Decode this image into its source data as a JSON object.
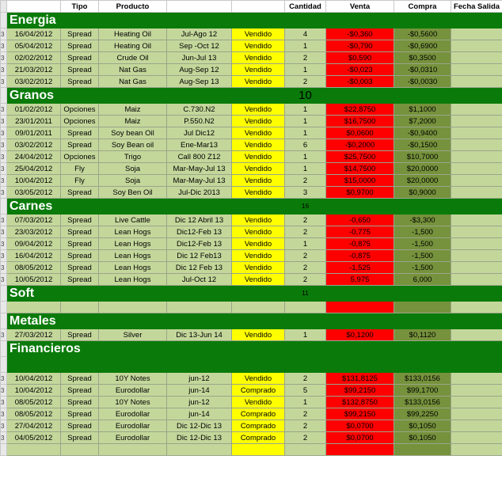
{
  "header": {
    "tipo": "Tipo",
    "producto": "Producto",
    "cantidad": "Cantidad",
    "venta": "Venta",
    "compra": "Compra",
    "fecha_salida": "Fecha Salida"
  },
  "sections": {
    "energia": {
      "title": "Energia",
      "count": "",
      "rows": [
        {
          "rn": "3",
          "fecha": "16/04/2012",
          "tipo": "Spread",
          "producto": "Heating Oil",
          "contrato": "Jul-Ago 12",
          "estado": "Vendido",
          "cantidad": "4",
          "venta": "-$0,360",
          "compra": "-$0,5600"
        },
        {
          "rn": "3",
          "fecha": "05/04/2012",
          "tipo": "Spread",
          "producto": "Heating Oil",
          "contrato": "Sep -Oct 12",
          "estado": "Vendido",
          "cantidad": "1",
          "venta": "-$0,790",
          "compra": "-$0,6900"
        },
        {
          "rn": "3",
          "fecha": "02/02/2012",
          "tipo": "Spread",
          "producto": "Crude Oil",
          "contrato": "Jun-Jul 13",
          "estado": "Vendido",
          "cantidad": "2",
          "venta": "$0,590",
          "compra": "$0,3500"
        },
        {
          "rn": "3",
          "fecha": "21/03/2012",
          "tipo": "Spread",
          "producto": "Nat Gas",
          "contrato": "Aug-Sep 12",
          "estado": "Vendido",
          "cantidad": "1",
          "venta": "-$0,023",
          "compra": "-$0,0310"
        },
        {
          "rn": "3",
          "fecha": "03/02/2012",
          "tipo": "Spread",
          "producto": "Nat Gas",
          "contrato": "Aug-Sep 13",
          "estado": "Vendido",
          "cantidad": "2",
          "venta": "-$0,003",
          "compra": "-$0,0030"
        }
      ]
    },
    "granos": {
      "title": "Granos",
      "count": "10",
      "rows": [
        {
          "rn": "3",
          "fecha": "01/02/2012",
          "tipo": "Opciones",
          "producto": "Maiz",
          "contrato": "C.730.N2",
          "estado": "Vendido",
          "cantidad": "1",
          "venta": "$22,8750",
          "compra": "$1,1000"
        },
        {
          "rn": "3",
          "fecha": "23/01/2011",
          "tipo": "Opciones",
          "producto": "Maiz",
          "contrato": "P.550.N2",
          "estado": "Vendido",
          "cantidad": "1",
          "venta": "$16,7500",
          "compra": "$7,2000"
        },
        {
          "rn": "3",
          "fecha": "09/01/2011",
          "tipo": "Spread",
          "producto": "Soy bean Oil",
          "contrato": "Jul Dic12",
          "estado": "Vendido",
          "cantidad": "1",
          "venta": "$0,0600",
          "compra": "-$0,9400"
        },
        {
          "rn": "3",
          "fecha": "03/02/2012",
          "tipo": "Spread",
          "producto": "Soy Bean oil",
          "contrato": "Ene-Mar13",
          "estado": "Vendido",
          "cantidad": "6",
          "venta": "-$0,2000",
          "compra": "-$0,1500"
        },
        {
          "rn": "3",
          "fecha": "24/04/2012",
          "tipo": "Opciones",
          "producto": "Trigo",
          "contrato": "Call 800 Z12",
          "estado": "Vendido",
          "cantidad": "1",
          "venta": "$25,7500",
          "compra": "$10,7000"
        },
        {
          "rn": "3",
          "fecha": "25/04/2012",
          "tipo": "Fly",
          "producto": "Soja",
          "contrato": "Mar-May-Jul 13",
          "estado": "Vendido",
          "cantidad": "1",
          "venta": "$14,7500",
          "compra": "$20,0000"
        },
        {
          "rn": "3",
          "fecha": "10/04/2012",
          "tipo": "Fly",
          "producto": "Soja",
          "contrato": "Mar-May-Jul 13",
          "estado": "Vendido",
          "cantidad": "2",
          "venta": "$15,0000",
          "compra": "$20,0000"
        },
        {
          "rn": "3",
          "fecha": "03/05/2012",
          "tipo": "Spread",
          "producto": "Soy Ben Oil",
          "contrato": "Jul-Dic 2013",
          "estado": "Vendido",
          "cantidad": "3",
          "venta": "$0,9700",
          "compra": "$0,9000"
        }
      ]
    },
    "carnes": {
      "title": "Carnes",
      "count": "16",
      "rows": [
        {
          "rn": "3",
          "fecha": "07/03/2012",
          "tipo": "Spread",
          "producto": "Live Cattle",
          "contrato": "Dic 12 Abril 13",
          "estado": "Vendido",
          "cantidad": "2",
          "venta": "-0,650",
          "compra": "-$3,300"
        },
        {
          "rn": "3",
          "fecha": "23/03/2012",
          "tipo": "Spread",
          "producto": "Lean Hogs",
          "contrato": "Dic12-Feb 13",
          "estado": "Vendido",
          "cantidad": "2",
          "venta": "-0,775",
          "compra": "-1,500"
        },
        {
          "rn": "3",
          "fecha": "09/04/2012",
          "tipo": "Spread",
          "producto": "Lean Hogs",
          "contrato": "Dic12-Feb 13",
          "estado": "Vendido",
          "cantidad": "1",
          "venta": "-0,875",
          "compra": "-1,500"
        },
        {
          "rn": "3",
          "fecha": "16/04/2012",
          "tipo": "Spread",
          "producto": "Lean Hogs",
          "contrato": "Dic 12 Feb13",
          "estado": "Vendido",
          "cantidad": "2",
          "venta": "-0,875",
          "compra": "-1,500"
        },
        {
          "rn": "3",
          "fecha": "08/05/2012",
          "tipo": "Spread",
          "producto": "Lean Hogs",
          "contrato": "Dic 12 Feb 13",
          "estado": "Vendido",
          "cantidad": "2",
          "venta": "-1,525",
          "compra": "-1,500"
        },
        {
          "rn": "3",
          "fecha": "10/05/2012",
          "tipo": "Spread",
          "producto": "Lean Hogs",
          "contrato": "Jul-Oct 12",
          "estado": "Vendido",
          "cantidad": "2",
          "venta": "5,975",
          "compra": "6,000"
        }
      ]
    },
    "soft": {
      "title": "Soft",
      "count": "11"
    },
    "metales": {
      "title": "Metales",
      "rows": [
        {
          "rn": "3",
          "fecha": "27/03/2012",
          "tipo": "Spread",
          "producto": "Silver",
          "contrato": "Dic 13-Jun 14",
          "estado": "Vendido",
          "cantidad": "1",
          "venta": "$0,1200",
          "compra": "$0,1120"
        }
      ]
    },
    "financieros": {
      "title": "Financieros",
      "rows": [
        {
          "rn": "3",
          "fecha": "10/04/2012",
          "tipo": "Spread",
          "producto": "10Y Notes",
          "contrato": "jun-12",
          "estado": "Vendido",
          "cantidad": "2",
          "venta": "$131,8125",
          "compra": "$133,0156"
        },
        {
          "rn": "3",
          "fecha": "10/04/2012",
          "tipo": "Spread",
          "producto": "Eurodollar",
          "contrato": "jun-14",
          "estado": "Comprado",
          "cantidad": "5",
          "venta": "$99,2150",
          "compra": "$99,1700"
        },
        {
          "rn": "3",
          "fecha": "08/05/2012",
          "tipo": "Spread",
          "producto": "10Y Notes",
          "contrato": "jun-12",
          "estado": "Vendido",
          "cantidad": "1",
          "venta": "$132,8750",
          "compra": "$133,0156"
        },
        {
          "rn": "3",
          "fecha": "08/05/2012",
          "tipo": "Spread",
          "producto": "Eurodollar",
          "contrato": "jun-14",
          "estado": "Comprado",
          "cantidad": "2",
          "venta": "$99,2150",
          "compra": "$99,2250"
        },
        {
          "rn": "3",
          "fecha": "27/04/2012",
          "tipo": "Spread",
          "producto": "Eurodollar",
          "contrato": "Dic 12-Dic 13",
          "estado": "Comprado",
          "cantidad": "2",
          "venta": "$0,0700",
          "compra": "$0,1050"
        },
        {
          "rn": "3",
          "fecha": "04/05/2012",
          "tipo": "Spread",
          "producto": "Eurodollar",
          "contrato": "Dic 12-Dic 13",
          "estado": "Comprado",
          "cantidad": "2",
          "venta": "$0,0700",
          "compra": "$0,1050"
        }
      ]
    }
  },
  "colors": {
    "section_green": "#0a7b0a",
    "row_green": "#c4d79b",
    "dark_green": "#76923c",
    "yellow": "#ffff00",
    "red": "#ff0000"
  }
}
